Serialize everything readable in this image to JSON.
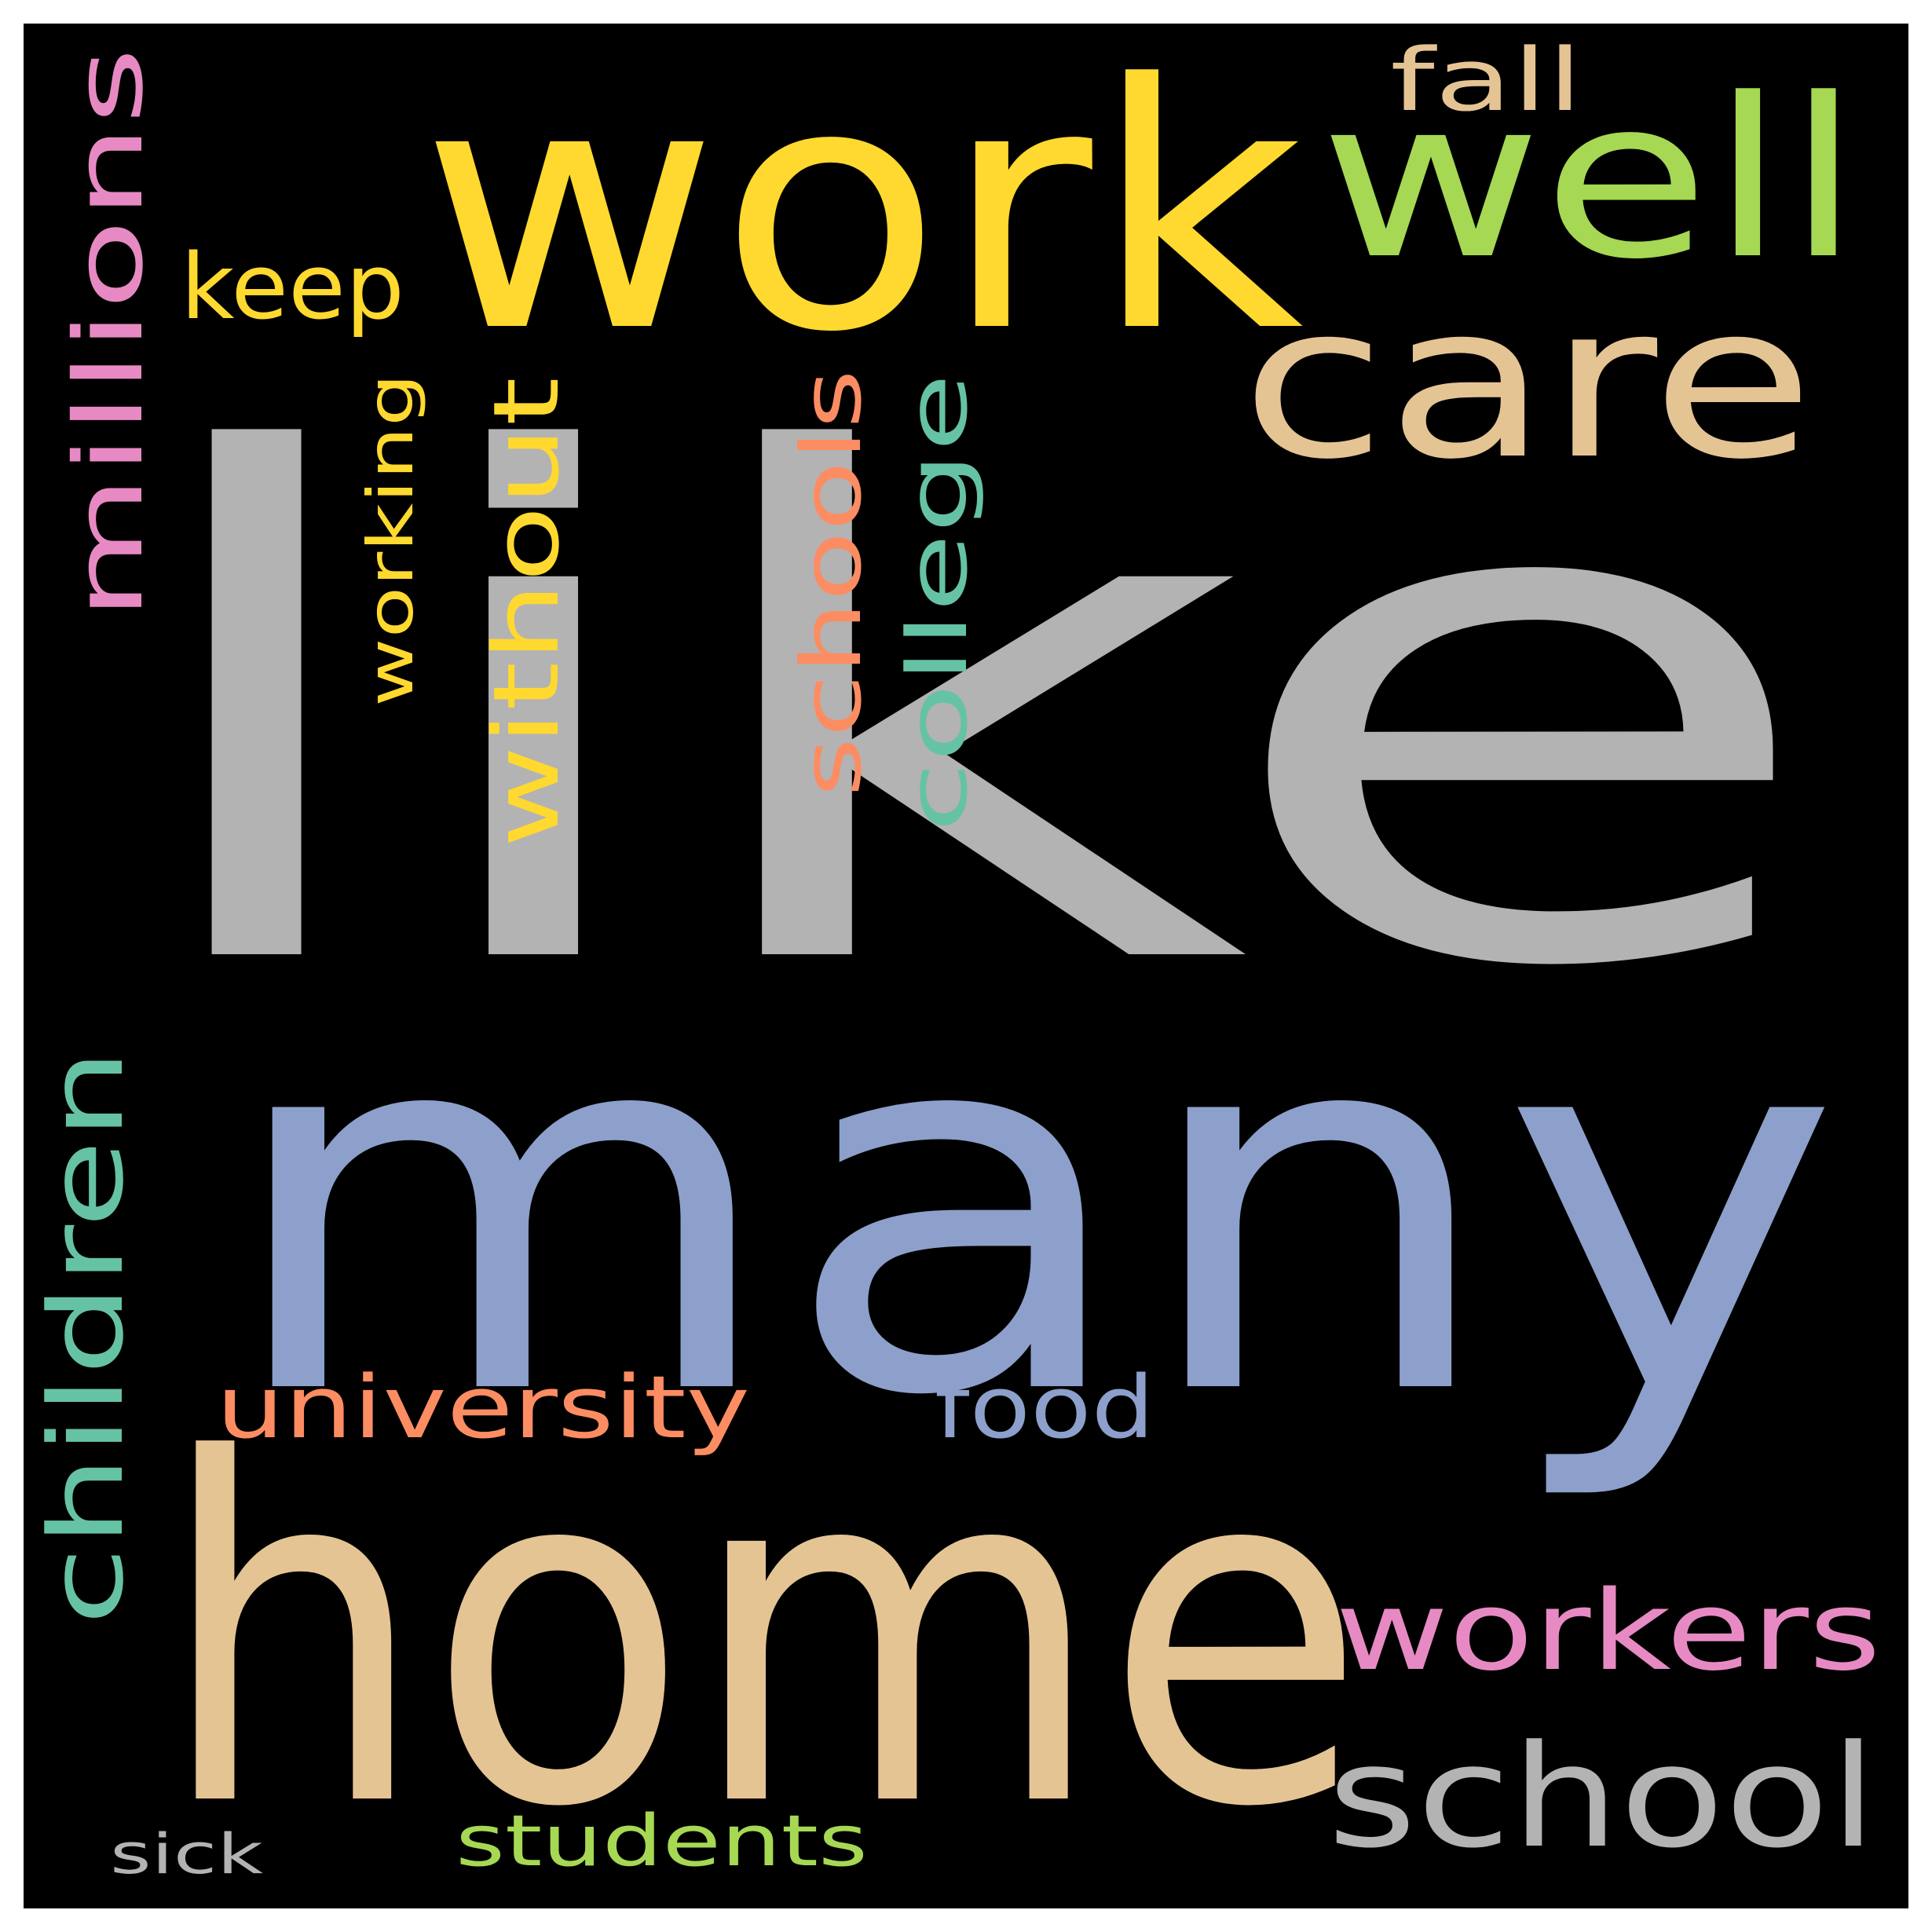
{
  "wordcloud": {
    "background_color": "#000000",
    "words": [
      {
        "key": "like",
        "text": "like",
        "color": "#b3b3b3"
      },
      {
        "key": "many",
        "text": "many",
        "color": "#8da0cb"
      },
      {
        "key": "home",
        "text": "home",
        "color": "#e5c494"
      },
      {
        "key": "work",
        "text": "work",
        "color": "#ffd92f"
      },
      {
        "key": "well",
        "text": "well",
        "color": "#a6d854"
      },
      {
        "key": "care",
        "text": "care",
        "color": "#e5c494"
      },
      {
        "key": "keep",
        "text": "keep",
        "color": "#ffd92f"
      },
      {
        "key": "fall",
        "text": "fall",
        "color": "#e5c494"
      },
      {
        "key": "millions",
        "text": "millions",
        "color": "#e78ac3"
      },
      {
        "key": "working",
        "text": "working",
        "color": "#ffd92f"
      },
      {
        "key": "without",
        "text": "without",
        "color": "#ffd92f"
      },
      {
        "key": "schools",
        "text": "schools",
        "color": "#fc8d62"
      },
      {
        "key": "college",
        "text": "college",
        "color": "#66c2a5"
      },
      {
        "key": "children",
        "text": "children",
        "color": "#66c2a5"
      },
      {
        "key": "university",
        "text": "university",
        "color": "#fc8d62"
      },
      {
        "key": "food",
        "text": "food",
        "color": "#8da0cb"
      },
      {
        "key": "workers",
        "text": "workers",
        "color": "#e78ac3"
      },
      {
        "key": "school",
        "text": "school",
        "color": "#b3b3b3"
      },
      {
        "key": "students",
        "text": "students",
        "color": "#a6d854"
      },
      {
        "key": "sick",
        "text": "sick",
        "color": "#b3b3b3"
      }
    ]
  }
}
